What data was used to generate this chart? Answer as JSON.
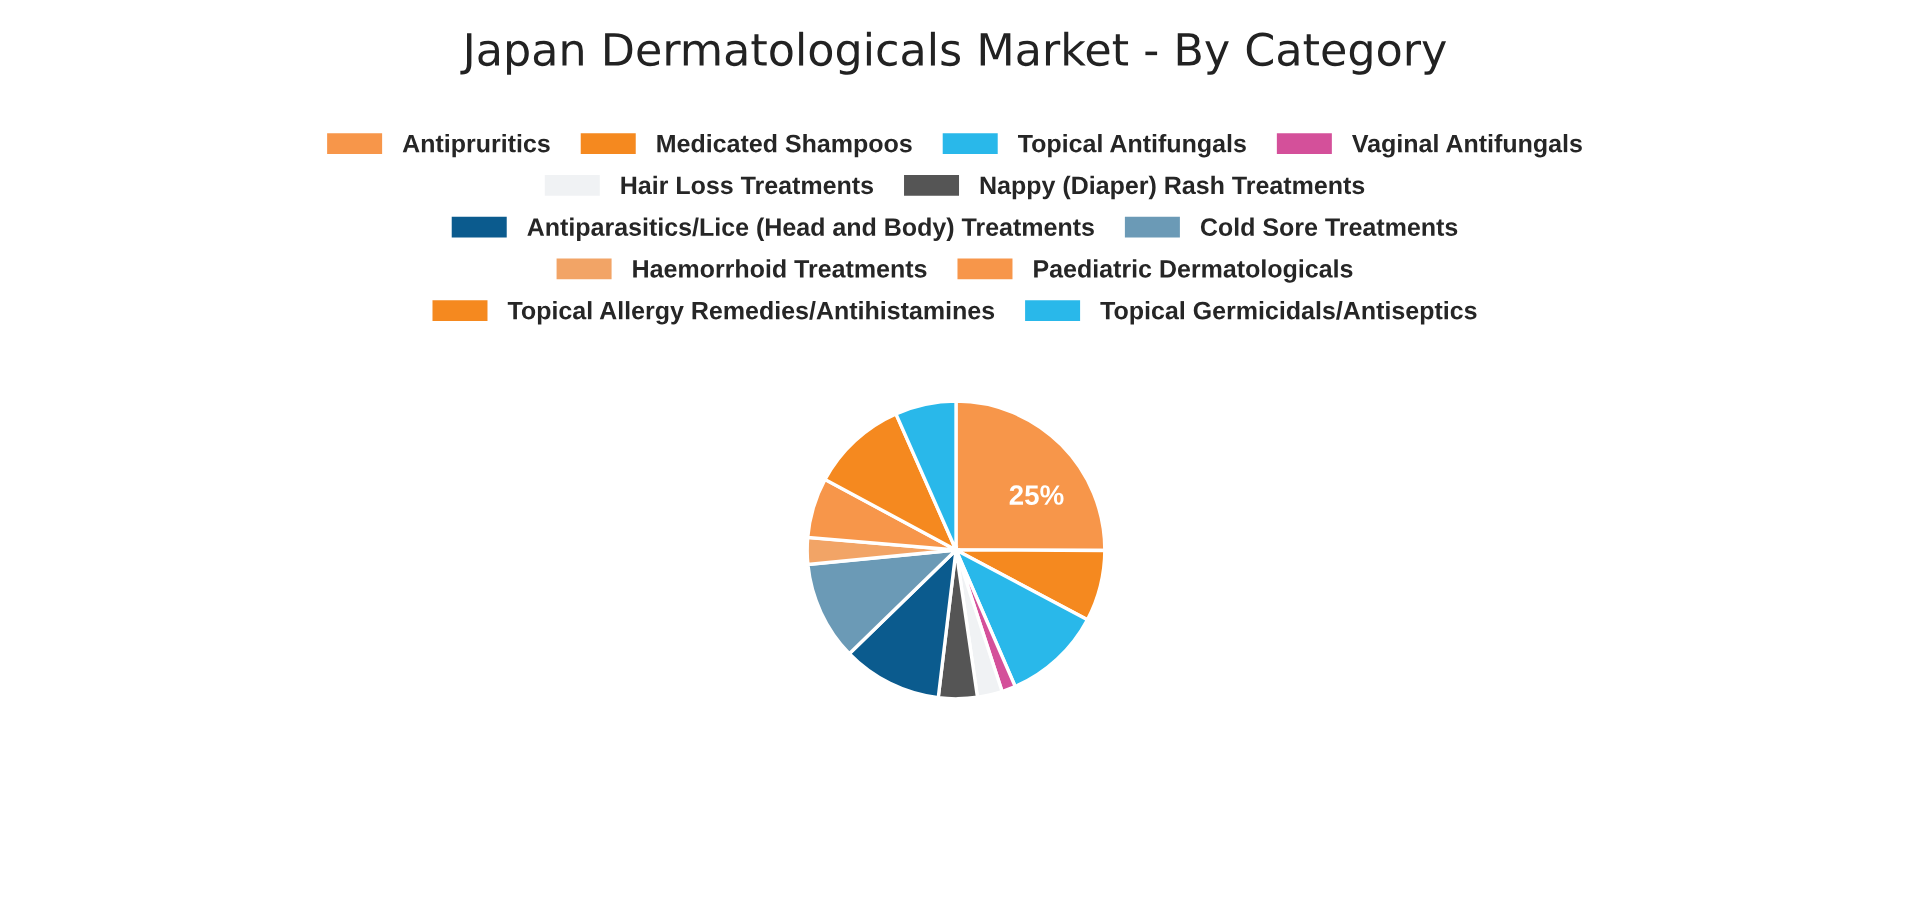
{
  "chart_data": {
    "type": "pie",
    "title": "Japan Dermatologicals Market - By Category",
    "categories": [
      "Antipruritics",
      "Medicated Shampoos",
      "Topical Antifungals",
      "Vaginal Antifungals",
      "Hair Loss Treatments",
      "Nappy (Diaper) Rash Treatments",
      "Antiparasitics/Lice (Head and Body) Treatments",
      "Cold Sore Treatments",
      "Haemorrhoid Treatments",
      "Paediatric Dermatologicals",
      "Topical Allergy Remedies/Antihistamines",
      "Topical Germicidals/Antiseptics"
    ],
    "values": [
      25,
      7.7,
      10.7,
      1.5,
      2.7,
      4.2,
      10.8,
      10.7,
      2.9,
      6.5,
      10.5,
      6.6
    ],
    "value_labels": [
      "25%",
      null,
      null,
      null,
      null,
      null,
      null,
      null,
      null,
      null,
      null,
      null
    ],
    "colors": [
      "#f7964a",
      "#f5891f",
      "#29b8ea",
      "#d4509a",
      "#f0f2f4",
      "#555555",
      "#0b5b8e",
      "#6b9ab6",
      "#f2a466",
      "#f7964a",
      "#f5891f",
      "#29b8ea"
    ],
    "legend": "top"
  }
}
